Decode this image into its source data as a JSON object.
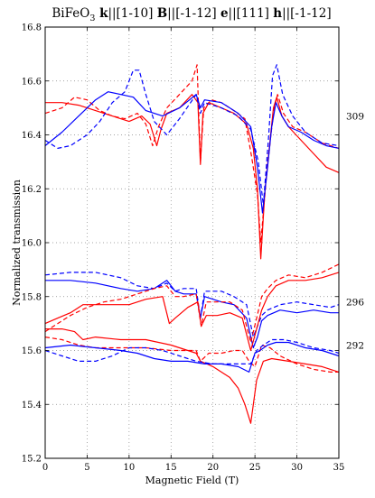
{
  "chart_data": {
    "type": "line",
    "title_parts": [
      {
        "text": "BiFeO",
        "bold": false
      },
      {
        "text": "3",
        "bold": false,
        "sub": true
      },
      {
        "text": " k",
        "bold": true
      },
      {
        "text": "||[1-10] ",
        "bold": false
      },
      {
        "text": "B",
        "bold": true
      },
      {
        "text": "||[-1-12] ",
        "bold": false
      },
      {
        "text": "e",
        "bold": true
      },
      {
        "text": "||[111] ",
        "bold": false
      },
      {
        "text": "h",
        "bold": true
      },
      {
        "text": "||[-1-12]",
        "bold": false
      }
    ],
    "xlabel": "Magnetic Field (T)",
    "ylabel": "Normalized transmission",
    "xlim": [
      0,
      35
    ],
    "ylim": [
      15.2,
      16.8
    ],
    "xticks": [
      0,
      5,
      10,
      15,
      20,
      25,
      30,
      35
    ],
    "yticks": [
      "15.2",
      "15.4",
      "15.6",
      "15.8",
      "16.0",
      "16.2",
      "16.4",
      "16.6",
      "16.8"
    ],
    "grid": true,
    "side_labels": [
      {
        "text": "309",
        "y": 16.47
      },
      {
        "text": "296",
        "y": 15.78
      },
      {
        "text": "292",
        "y": 15.62
      }
    ],
    "colors": {
      "red": "#ff0000",
      "blue": "#0000ff",
      "grid": "#888888"
    },
    "series": [
      {
        "color": "red",
        "dash": false,
        "x": [
          0,
          2,
          4,
          6,
          8,
          10,
          11.5,
          12.5,
          13.3,
          13.8,
          14.5,
          16,
          17.5,
          18.2,
          18.5,
          18.8,
          19.5,
          21,
          22.5,
          24,
          24.8,
          25.3,
          25.7,
          26.2,
          26.8,
          27.2,
          27.6,
          28.2,
          29,
          30.5,
          32,
          33.5,
          35
        ],
        "y": [
          16.52,
          16.52,
          16.51,
          16.49,
          16.47,
          16.45,
          16.47,
          16.44,
          16.36,
          16.42,
          16.48,
          16.5,
          16.55,
          16.52,
          16.29,
          16.48,
          16.52,
          16.5,
          16.48,
          16.44,
          16.35,
          16.2,
          15.94,
          16.2,
          16.38,
          16.5,
          16.54,
          16.47,
          16.43,
          16.38,
          16.33,
          16.28,
          16.26
        ]
      },
      {
        "color": "red",
        "dash": true,
        "x": [
          0,
          2,
          3.5,
          5,
          6.5,
          8,
          9.5,
          11,
          12,
          12.8,
          13.5,
          14.5,
          16,
          17.5,
          18.1,
          18.5,
          18.9,
          19.8,
          21,
          22.5,
          23.8,
          24.6,
          25.3,
          25.7,
          26.3,
          26.9,
          27.3,
          27.7,
          28.4,
          29.5,
          31,
          33,
          35
        ],
        "y": [
          16.48,
          16.5,
          16.54,
          16.53,
          16.49,
          16.47,
          16.46,
          16.48,
          16.44,
          16.36,
          16.43,
          16.5,
          16.55,
          16.6,
          16.66,
          16.3,
          16.5,
          16.53,
          16.52,
          16.49,
          16.46,
          16.32,
          16.18,
          16.0,
          16.22,
          16.4,
          16.5,
          16.55,
          16.48,
          16.43,
          16.41,
          16.37,
          16.35
        ]
      },
      {
        "color": "blue",
        "dash": false,
        "x": [
          0,
          2,
          4,
          6,
          7.5,
          9,
          10.5,
          12,
          14,
          16,
          18,
          18.5,
          19,
          21,
          23,
          24.5,
          25.3,
          25.9,
          26.5,
          27,
          27.5,
          28.2,
          29,
          30.5,
          32,
          33.5,
          35
        ],
        "y": [
          16.36,
          16.41,
          16.47,
          16.53,
          16.56,
          16.55,
          16.54,
          16.49,
          16.47,
          16.5,
          16.55,
          16.5,
          16.53,
          16.52,
          16.48,
          16.43,
          16.28,
          16.11,
          16.28,
          16.43,
          16.52,
          16.47,
          16.43,
          16.41,
          16.38,
          16.36,
          16.35
        ]
      },
      {
        "color": "blue",
        "dash": true,
        "x": [
          0,
          1.5,
          3,
          5,
          6.5,
          8,
          9.5,
          10.5,
          11.2,
          12,
          13,
          14.5,
          16,
          18,
          18.5,
          19,
          21,
          23,
          24.5,
          25.4,
          26,
          26.6,
          27.1,
          27.6,
          28.3,
          29.5,
          31,
          33,
          35
        ],
        "y": [
          16.38,
          16.35,
          16.36,
          16.4,
          16.45,
          16.52,
          16.56,
          16.64,
          16.64,
          16.55,
          16.45,
          16.4,
          16.46,
          16.55,
          16.48,
          16.52,
          16.5,
          16.47,
          16.42,
          16.3,
          16.14,
          16.38,
          16.62,
          16.66,
          16.55,
          16.47,
          16.41,
          16.37,
          16.36
        ]
      },
      {
        "color": "blue",
        "dash": false,
        "x": [
          0,
          3,
          6,
          9,
          11,
          13,
          14.5,
          15.5,
          16.5,
          18,
          18.5,
          19,
          21,
          22.5,
          24,
          24.8,
          25.3,
          25.8,
          26.5,
          28,
          30,
          32,
          34,
          35
        ],
        "y": [
          15.86,
          15.86,
          15.85,
          15.83,
          15.82,
          15.83,
          15.86,
          15.82,
          15.81,
          15.81,
          15.72,
          15.8,
          15.78,
          15.77,
          15.72,
          15.61,
          15.65,
          15.71,
          15.73,
          15.75,
          15.74,
          15.75,
          15.74,
          15.74
        ]
      },
      {
        "color": "blue",
        "dash": true,
        "x": [
          0,
          3,
          6,
          9,
          11,
          13,
          14.5,
          15.5,
          16.5,
          18,
          18.5,
          19,
          21,
          22.5,
          24,
          24.8,
          25.3,
          25.8,
          26.5,
          28,
          30,
          32,
          34,
          35
        ],
        "y": [
          15.88,
          15.89,
          15.89,
          15.87,
          15.84,
          15.83,
          15.85,
          15.82,
          15.83,
          15.83,
          15.72,
          15.82,
          15.82,
          15.8,
          15.77,
          15.65,
          15.69,
          15.73,
          15.75,
          15.77,
          15.78,
          15.77,
          15.76,
          15.77
        ]
      },
      {
        "color": "red",
        "dash": false,
        "x": [
          0,
          1.5,
          3,
          4.5,
          6,
          8,
          10,
          12,
          14,
          14.8,
          15.5,
          17,
          18.2,
          18.6,
          19.2,
          20.5,
          22,
          23.5,
          24.5,
          25.2,
          25.8,
          26.5,
          27.5,
          29,
          31,
          33,
          35
        ],
        "y": [
          15.7,
          15.72,
          15.74,
          15.77,
          15.77,
          15.77,
          15.77,
          15.79,
          15.8,
          15.7,
          15.72,
          15.76,
          15.78,
          15.69,
          15.73,
          15.73,
          15.74,
          15.72,
          15.6,
          15.68,
          15.75,
          15.8,
          15.84,
          15.86,
          15.86,
          15.87,
          15.89
        ]
      },
      {
        "color": "red",
        "dash": true,
        "x": [
          0,
          1.5,
          3,
          5,
          7,
          9,
          11,
          13,
          14.5,
          15.5,
          16.5,
          18,
          18.6,
          19.2,
          20.5,
          22,
          23.5,
          24.5,
          25.2,
          25.8,
          26.5,
          27.5,
          29,
          31,
          33,
          35
        ],
        "y": [
          15.67,
          15.7,
          15.73,
          15.76,
          15.78,
          15.79,
          15.81,
          15.83,
          15.84,
          15.8,
          15.8,
          15.81,
          15.69,
          15.78,
          15.78,
          15.78,
          15.75,
          15.63,
          15.72,
          15.8,
          15.83,
          15.86,
          15.88,
          15.87,
          15.89,
          15.92
        ]
      },
      {
        "color": "red",
        "dash": false,
        "x": [
          0,
          2,
          3.5,
          4.5,
          6,
          9,
          12,
          15,
          17,
          18,
          18.5,
          19.3,
          20,
          21,
          22,
          23,
          23.8,
          24.5,
          25.2,
          26,
          27,
          29,
          31,
          33,
          35
        ],
        "y": [
          15.68,
          15.68,
          15.67,
          15.64,
          15.65,
          15.64,
          15.64,
          15.62,
          15.6,
          15.59,
          15.56,
          15.55,
          15.54,
          15.52,
          15.5,
          15.46,
          15.4,
          15.33,
          15.49,
          15.56,
          15.57,
          15.56,
          15.55,
          15.54,
          15.52
        ]
      },
      {
        "color": "red",
        "dash": true,
        "x": [
          0,
          2,
          4,
          6,
          9,
          12,
          15,
          17,
          18,
          18.5,
          19.5,
          21,
          22.5,
          23.5,
          24.3,
          25,
          25.8,
          26.8,
          28,
          30,
          32,
          34,
          35
        ],
        "y": [
          15.65,
          15.64,
          15.62,
          15.61,
          15.61,
          15.61,
          15.6,
          15.6,
          15.6,
          15.56,
          15.59,
          15.59,
          15.6,
          15.6,
          15.56,
          15.54,
          15.62,
          15.61,
          15.58,
          15.55,
          15.53,
          15.52,
          15.52
        ]
      },
      {
        "color": "blue",
        "dash": false,
        "x": [
          0,
          3,
          6,
          9,
          11,
          13,
          15,
          17,
          19,
          21,
          23,
          24.3,
          25,
          25.6,
          26.5,
          27.5,
          29,
          31,
          33,
          35
        ],
        "y": [
          15.61,
          15.62,
          15.61,
          15.6,
          15.59,
          15.57,
          15.56,
          15.56,
          15.55,
          15.55,
          15.54,
          15.52,
          15.59,
          15.6,
          15.62,
          15.63,
          15.63,
          15.61,
          15.6,
          15.58
        ]
      },
      {
        "color": "blue",
        "dash": true,
        "x": [
          0,
          2,
          4,
          6,
          8,
          10,
          12,
          14,
          16,
          18,
          20,
          22,
          23.5,
          24.5,
          25.2,
          26,
          27,
          28.5,
          30,
          32,
          34,
          35
        ],
        "y": [
          15.6,
          15.58,
          15.56,
          15.56,
          15.58,
          15.61,
          15.61,
          15.6,
          15.58,
          15.56,
          15.55,
          15.55,
          15.55,
          15.55,
          15.6,
          15.62,
          15.64,
          15.64,
          15.63,
          15.61,
          15.6,
          15.59
        ]
      }
    ]
  }
}
